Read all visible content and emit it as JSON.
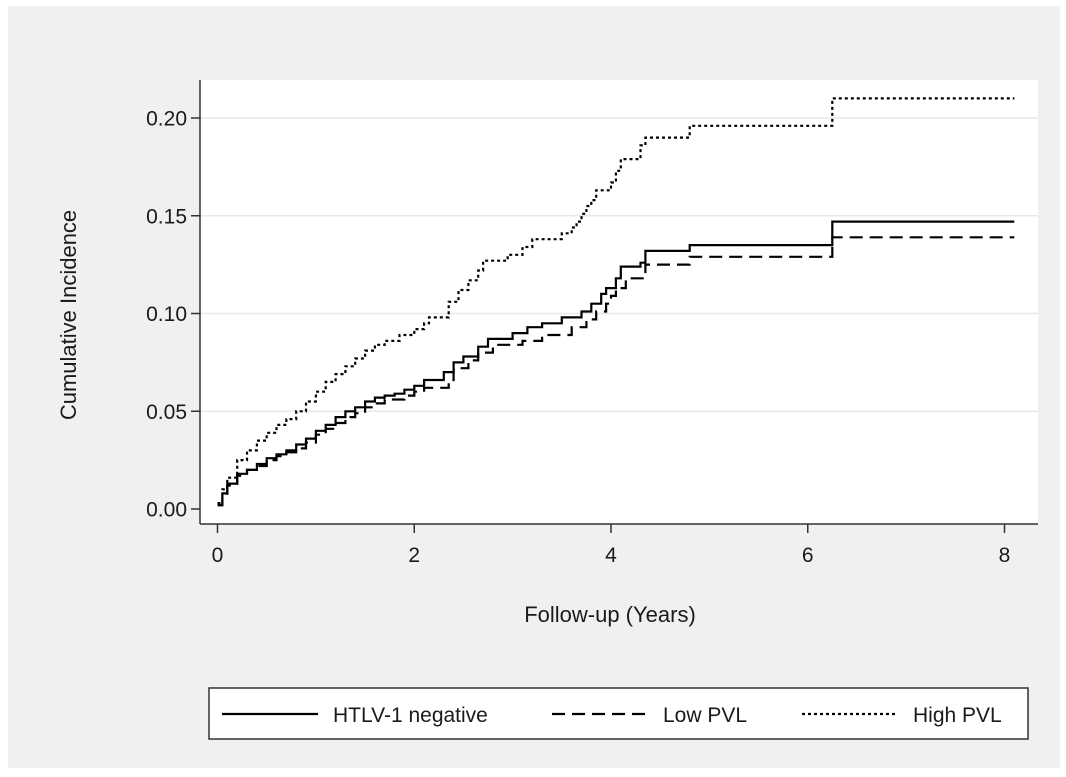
{
  "chart_data": {
    "type": "line",
    "title": "",
    "xlabel": "Follow-up (Years)",
    "ylabel": "Cumulative Incidence",
    "xlim": [
      0,
      8.1
    ],
    "ylim": [
      0,
      0.21
    ],
    "x_ticks": [
      {
        "value": 0,
        "label": "0"
      },
      {
        "value": 2,
        "label": "2"
      },
      {
        "value": 4,
        "label": "4"
      },
      {
        "value": 6,
        "label": "6"
      },
      {
        "value": 8,
        "label": "8"
      }
    ],
    "y_ticks": [
      {
        "value": 0,
        "label": "0.00"
      },
      {
        "value": 0.05,
        "label": "0.05"
      },
      {
        "value": 0.1,
        "label": "0.10"
      },
      {
        "value": 0.15,
        "label": "0.15"
      },
      {
        "value": 0.2,
        "label": "0.20"
      }
    ],
    "grid": "horizontal",
    "legend_position": "bottom",
    "step": true,
    "series": [
      {
        "name": "HTLV-1 negative",
        "style": "solid",
        "color": "#000000",
        "points": [
          [
            0,
            0.002
          ],
          [
            0.05,
            0.008
          ],
          [
            0.1,
            0.013
          ],
          [
            0.2,
            0.018
          ],
          [
            0.3,
            0.02
          ],
          [
            0.4,
            0.023
          ],
          [
            0.5,
            0.026
          ],
          [
            0.6,
            0.028
          ],
          [
            0.7,
            0.03
          ],
          [
            0.8,
            0.033
          ],
          [
            0.9,
            0.036
          ],
          [
            1.0,
            0.04
          ],
          [
            1.1,
            0.043
          ],
          [
            1.2,
            0.047
          ],
          [
            1.3,
            0.05
          ],
          [
            1.4,
            0.052
          ],
          [
            1.5,
            0.055
          ],
          [
            1.6,
            0.057
          ],
          [
            1.7,
            0.058
          ],
          [
            1.8,
            0.059
          ],
          [
            1.9,
            0.061
          ],
          [
            2.0,
            0.063
          ],
          [
            2.1,
            0.066
          ],
          [
            2.3,
            0.07
          ],
          [
            2.4,
            0.075
          ],
          [
            2.5,
            0.078
          ],
          [
            2.65,
            0.083
          ],
          [
            2.75,
            0.087
          ],
          [
            3.0,
            0.09
          ],
          [
            3.15,
            0.093
          ],
          [
            3.3,
            0.095
          ],
          [
            3.5,
            0.098
          ],
          [
            3.7,
            0.101
          ],
          [
            3.8,
            0.105
          ],
          [
            3.9,
            0.11
          ],
          [
            3.95,
            0.113
          ],
          [
            4.05,
            0.118
          ],
          [
            4.1,
            0.124
          ],
          [
            4.3,
            0.126
          ],
          [
            4.35,
            0.132
          ],
          [
            4.8,
            0.135
          ],
          [
            6.25,
            0.147
          ],
          [
            8.1,
            0.147
          ]
        ]
      },
      {
        "name": "Low PVL",
        "style": "dashed",
        "color": "#000000",
        "points": [
          [
            0,
            0.002
          ],
          [
            0.05,
            0.007
          ],
          [
            0.1,
            0.012
          ],
          [
            0.2,
            0.017
          ],
          [
            0.3,
            0.02
          ],
          [
            0.4,
            0.022
          ],
          [
            0.5,
            0.025
          ],
          [
            0.6,
            0.027
          ],
          [
            0.7,
            0.029
          ],
          [
            0.8,
            0.031
          ],
          [
            0.9,
            0.034
          ],
          [
            1.0,
            0.038
          ],
          [
            1.1,
            0.041
          ],
          [
            1.2,
            0.044
          ],
          [
            1.3,
            0.047
          ],
          [
            1.4,
            0.049
          ],
          [
            1.5,
            0.052
          ],
          [
            1.6,
            0.054
          ],
          [
            1.7,
            0.056
          ],
          [
            1.9,
            0.058
          ],
          [
            2.0,
            0.06
          ],
          [
            2.1,
            0.062
          ],
          [
            2.35,
            0.066
          ],
          [
            2.4,
            0.072
          ],
          [
            2.55,
            0.076
          ],
          [
            2.65,
            0.08
          ],
          [
            2.8,
            0.084
          ],
          [
            3.1,
            0.086
          ],
          [
            3.3,
            0.089
          ],
          [
            3.6,
            0.093
          ],
          [
            3.75,
            0.097
          ],
          [
            3.85,
            0.101
          ],
          [
            3.95,
            0.105
          ],
          [
            4.0,
            0.109
          ],
          [
            4.05,
            0.113
          ],
          [
            4.15,
            0.118
          ],
          [
            4.35,
            0.125
          ],
          [
            4.8,
            0.129
          ],
          [
            6.25,
            0.139
          ],
          [
            8.1,
            0.139
          ]
        ]
      },
      {
        "name": "High PVL",
        "style": "dotted",
        "color": "#000000",
        "points": [
          [
            0,
            0.003
          ],
          [
            0.05,
            0.01
          ],
          [
            0.1,
            0.016
          ],
          [
            0.2,
            0.025
          ],
          [
            0.3,
            0.03
          ],
          [
            0.4,
            0.035
          ],
          [
            0.5,
            0.039
          ],
          [
            0.6,
            0.043
          ],
          [
            0.7,
            0.046
          ],
          [
            0.8,
            0.05
          ],
          [
            0.9,
            0.055
          ],
          [
            1.0,
            0.06
          ],
          [
            1.1,
            0.065
          ],
          [
            1.2,
            0.069
          ],
          [
            1.3,
            0.073
          ],
          [
            1.4,
            0.077
          ],
          [
            1.5,
            0.081
          ],
          [
            1.6,
            0.084
          ],
          [
            1.7,
            0.086
          ],
          [
            1.85,
            0.089
          ],
          [
            2.0,
            0.092
          ],
          [
            2.1,
            0.095
          ],
          [
            2.15,
            0.098
          ],
          [
            2.35,
            0.106
          ],
          [
            2.45,
            0.112
          ],
          [
            2.55,
            0.117
          ],
          [
            2.65,
            0.122
          ],
          [
            2.7,
            0.127
          ],
          [
            2.95,
            0.13
          ],
          [
            3.1,
            0.134
          ],
          [
            3.2,
            0.138
          ],
          [
            3.5,
            0.141
          ],
          [
            3.6,
            0.144
          ],
          [
            3.65,
            0.147
          ],
          [
            3.7,
            0.151
          ],
          [
            3.75,
            0.155
          ],
          [
            3.8,
            0.158
          ],
          [
            3.85,
            0.163
          ],
          [
            4.0,
            0.167
          ],
          [
            4.05,
            0.173
          ],
          [
            4.1,
            0.179
          ],
          [
            4.3,
            0.186
          ],
          [
            4.35,
            0.19
          ],
          [
            4.8,
            0.196
          ],
          [
            6.25,
            0.21
          ],
          [
            8.1,
            0.21
          ]
        ]
      }
    ]
  },
  "colors": {
    "outer_background": "#f0f0f0",
    "plot_background": "#ffffff",
    "gridline": "#e8e8e8"
  }
}
